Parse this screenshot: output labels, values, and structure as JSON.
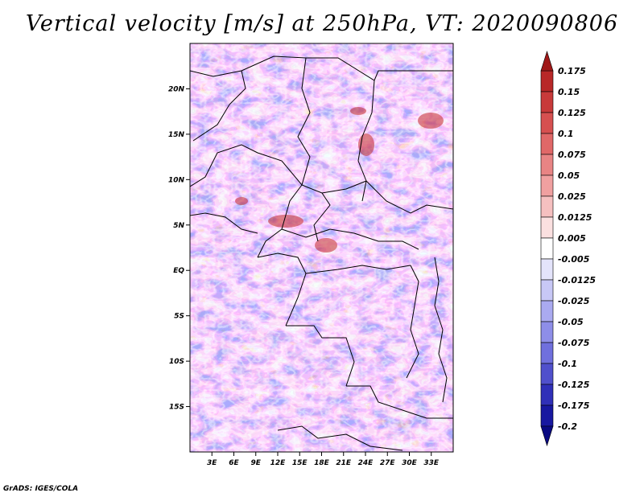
{
  "title": "Vertical velocity [m/s] at 250hPa, VT: 2020090806",
  "credit": "GrADS: IGES/COLA",
  "map": {
    "lon_range": [
      0,
      36
    ],
    "lat_range": [
      -20,
      25
    ],
    "lon_ticks": [
      {
        "lon": 3,
        "label": "3E"
      },
      {
        "lon": 6,
        "label": "6E"
      },
      {
        "lon": 9,
        "label": "9E"
      },
      {
        "lon": 12,
        "label": "12E"
      },
      {
        "lon": 15,
        "label": "15E"
      },
      {
        "lon": 18,
        "label": "18E"
      },
      {
        "lon": 21,
        "label": "21E"
      },
      {
        "lon": 24,
        "label": "24E"
      },
      {
        "lon": 27,
        "label": "27E"
      },
      {
        "lon": 30,
        "label": "30E"
      },
      {
        "lon": 33,
        "label": "33E"
      }
    ],
    "lat_ticks": [
      {
        "lat": 20,
        "label": "20N"
      },
      {
        "lat": 15,
        "label": "15N"
      },
      {
        "lat": 10,
        "label": "10N"
      },
      {
        "lat": 5,
        "label": "5N"
      },
      {
        "lat": 0,
        "label": "EQ"
      },
      {
        "lat": -5,
        "label": "5S"
      },
      {
        "lat": -10,
        "label": "10S"
      },
      {
        "lat": -15,
        "label": "15S"
      }
    ]
  },
  "colorbar": {
    "labels": [
      "0.175",
      "0.15",
      "0.125",
      "0.1",
      "0.075",
      "0.05",
      "0.025",
      "0.0125",
      "0.005",
      "-0.005",
      "-0.0125",
      "-0.025",
      "-0.05",
      "-0.075",
      "-0.1",
      "-0.125",
      "-0.175",
      "-0.2"
    ],
    "colors": [
      "#a01818",
      "#b82828",
      "#c83a3a",
      "#d65050",
      "#e06868",
      "#e88484",
      "#f0a0a0",
      "#f6c0c0",
      "#fbe0e0",
      "#ffffff",
      "#e4e4fb",
      "#c8c8f6",
      "#aaaaf0",
      "#8e8ee8",
      "#7070dd",
      "#5050cc",
      "#3030b8",
      "#1818a0",
      "#0a0a82"
    ]
  }
}
